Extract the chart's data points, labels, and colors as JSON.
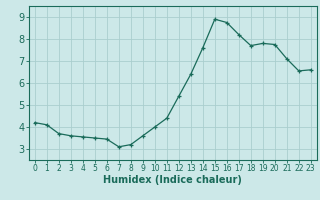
{
  "x": [
    0,
    1,
    2,
    3,
    4,
    5,
    6,
    7,
    8,
    9,
    10,
    11,
    12,
    13,
    14,
    15,
    16,
    17,
    18,
    19,
    20,
    21,
    22,
    23
  ],
  "y": [
    4.2,
    4.1,
    3.7,
    3.6,
    3.55,
    3.5,
    3.45,
    3.1,
    3.2,
    3.6,
    4.0,
    4.4,
    5.4,
    6.4,
    7.6,
    8.9,
    8.75,
    8.2,
    7.7,
    7.8,
    7.75,
    7.1,
    6.55,
    6.6
  ],
  "line_color": "#1a6b5a",
  "marker_color": "#1a6b5a",
  "bg_color": "#cce8e8",
  "grid_color": "#aacece",
  "axis_color": "#1a6b5a",
  "xlabel": "Humidex (Indice chaleur)",
  "ylim": [
    2.5,
    9.5
  ],
  "xlim": [
    -0.5,
    23.5
  ],
  "yticks": [
    3,
    4,
    5,
    6,
    7,
    8,
    9
  ],
  "xticks": [
    0,
    1,
    2,
    3,
    4,
    5,
    6,
    7,
    8,
    9,
    10,
    11,
    12,
    13,
    14,
    15,
    16,
    17,
    18,
    19,
    20,
    21,
    22,
    23
  ],
  "xlabel_fontsize": 7,
  "ylabel_fontsize": 7,
  "tick_fontsize_x": 5.5,
  "tick_fontsize_y": 7
}
